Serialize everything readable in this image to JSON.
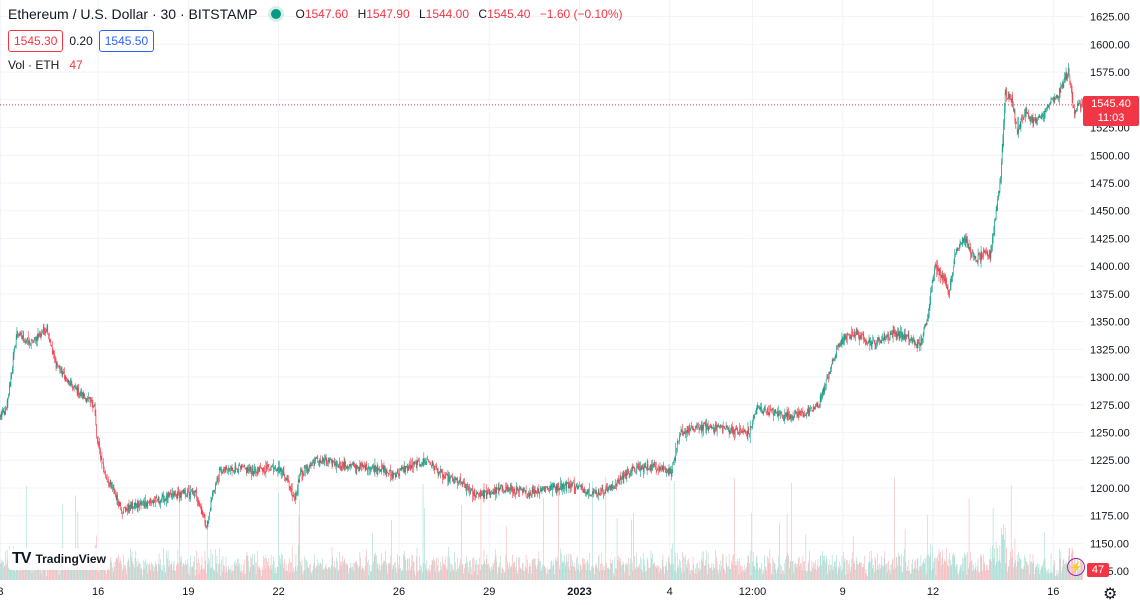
{
  "header": {
    "symbol": "Ethereum / U.S. Dollar · 30 · BITSTAMP",
    "open_label": "O",
    "open": "1547.60",
    "high_label": "H",
    "high": "1547.90",
    "low_label": "L",
    "low": "1544.00",
    "close_label": "C",
    "close": "1545.40",
    "change": "−1.60 (−0.10%)"
  },
  "quotes": {
    "bid": "1545.30",
    "spread": "0.20",
    "ask": "1545.50"
  },
  "volume": {
    "label": "Vol · ETH",
    "value": "47"
  },
  "price_tag": {
    "price": "1545.40",
    "countdown": "11:03"
  },
  "logo": {
    "text": "TradingView"
  },
  "colors": {
    "up": "#089981",
    "down": "#f23645",
    "up_vol": "#a5dbd1",
    "down_vol": "#f7b6b9"
  },
  "chart_data": {
    "type": "candlestick",
    "title": "",
    "yaxis_ticks": [
      1125,
      1150,
      1175,
      1200,
      1225,
      1250,
      1275,
      1300,
      1325,
      1350,
      1375,
      1400,
      1425,
      1450,
      1475,
      1500,
      1525,
      1550,
      1575,
      1600,
      1625
    ],
    "ylim": [
      1117,
      1640
    ],
    "xaxis_labels": [
      {
        "label": "3",
        "bar": 0
      },
      {
        "label": "16",
        "bar": 130
      },
      {
        "label": "19",
        "bar": 250
      },
      {
        "label": "22",
        "bar": 370
      },
      {
        "label": "26",
        "bar": 530
      },
      {
        "label": "29",
        "bar": 650
      },
      {
        "label": "2023",
        "bar": 770,
        "bold": true
      },
      {
        "label": "4",
        "bar": 890
      },
      {
        "label": "12:00",
        "bar": 1000
      },
      {
        "label": "9",
        "bar": 1120
      },
      {
        "label": "12",
        "bar": 1240
      },
      {
        "label": "16",
        "bar": 1400
      }
    ],
    "total_bars": 1440,
    "anchors": [
      [
        0,
        1265
      ],
      [
        8,
        1270
      ],
      [
        22,
        1340
      ],
      [
        40,
        1330
      ],
      [
        62,
        1345
      ],
      [
        72,
        1315
      ],
      [
        90,
        1295
      ],
      [
        112,
        1282
      ],
      [
        125,
        1275
      ],
      [
        128,
        1245
      ],
      [
        140,
        1210
      ],
      [
        152,
        1195
      ],
      [
        162,
        1180
      ],
      [
        185,
        1185
      ],
      [
        215,
        1190
      ],
      [
        240,
        1195
      ],
      [
        260,
        1195
      ],
      [
        270,
        1175
      ],
      [
        275,
        1165
      ],
      [
        282,
        1195
      ],
      [
        292,
        1215
      ],
      [
        315,
        1218
      ],
      [
        340,
        1215
      ],
      [
        365,
        1220
      ],
      [
        378,
        1212
      ],
      [
        392,
        1190
      ],
      [
        398,
        1212
      ],
      [
        420,
        1225
      ],
      [
        460,
        1220
      ],
      [
        505,
        1218
      ],
      [
        520,
        1212
      ],
      [
        540,
        1218
      ],
      [
        568,
        1225
      ],
      [
        590,
        1210
      ],
      [
        612,
        1205
      ],
      [
        628,
        1195
      ],
      [
        650,
        1195
      ],
      [
        670,
        1200
      ],
      [
        700,
        1195
      ],
      [
        725,
        1200
      ],
      [
        760,
        1203
      ],
      [
        790,
        1195
      ],
      [
        812,
        1200
      ],
      [
        835,
        1215
      ],
      [
        870,
        1220
      ],
      [
        892,
        1215
      ],
      [
        905,
        1250
      ],
      [
        930,
        1255
      ],
      [
        955,
        1255
      ],
      [
        975,
        1252
      ],
      [
        996,
        1250
      ],
      [
        1006,
        1272
      ],
      [
        1045,
        1265
      ],
      [
        1075,
        1268
      ],
      [
        1088,
        1275
      ],
      [
        1100,
        1300
      ],
      [
        1115,
        1330
      ],
      [
        1135,
        1340
      ],
      [
        1160,
        1330
      ],
      [
        1188,
        1340
      ],
      [
        1208,
        1335
      ],
      [
        1222,
        1328
      ],
      [
        1232,
        1350
      ],
      [
        1242,
        1400
      ],
      [
        1255,
        1390
      ],
      [
        1262,
        1375
      ],
      [
        1270,
        1415
      ],
      [
        1282,
        1425
      ],
      [
        1296,
        1405
      ],
      [
        1305,
        1410
      ],
      [
        1316,
        1410
      ],
      [
        1322,
        1440
      ],
      [
        1330,
        1480
      ],
      [
        1336,
        1555
      ],
      [
        1345,
        1550
      ],
      [
        1352,
        1522
      ],
      [
        1362,
        1538
      ],
      [
        1376,
        1530
      ],
      [
        1386,
        1535
      ],
      [
        1396,
        1548
      ],
      [
        1405,
        1552
      ],
      [
        1415,
        1568
      ],
      [
        1420,
        1575
      ],
      [
        1428,
        1540
      ],
      [
        1434,
        1545
      ],
      [
        1439,
        1545
      ]
    ],
    "current_price": 1545.4,
    "last_volume": 47
  }
}
